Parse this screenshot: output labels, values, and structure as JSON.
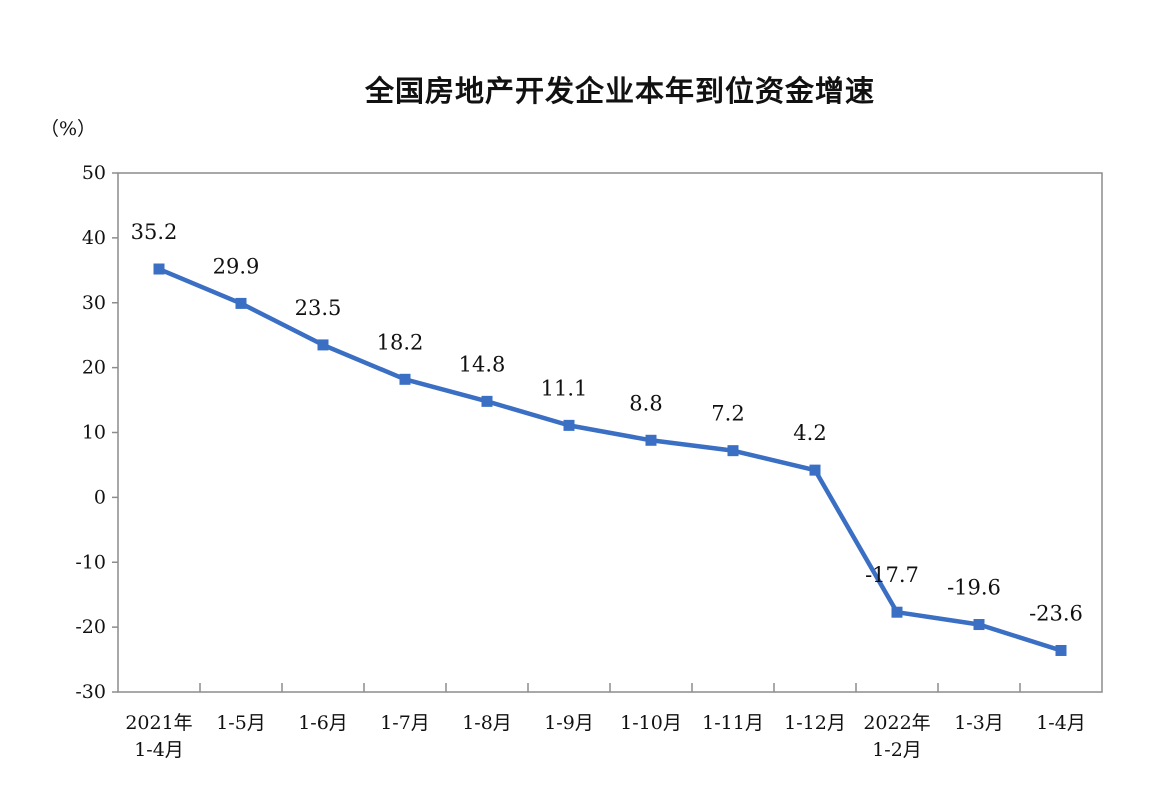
{
  "chart_data": {
    "type": "line",
    "title": "全国房地产开发企业本年到位资金增速",
    "ylabel": "（%）",
    "xlabel": "",
    "ylim": [
      -30,
      50
    ],
    "yticks": [
      50,
      40,
      30,
      20,
      10,
      0,
      -10,
      -20,
      -30
    ],
    "categories": [
      [
        "2021年",
        "1-4月"
      ],
      [
        "1-5月"
      ],
      [
        "1-6月"
      ],
      [
        "1-7月"
      ],
      [
        "1-8月"
      ],
      [
        "1-9月"
      ],
      [
        "1-10月"
      ],
      [
        "1-11月"
      ],
      [
        "1-12月"
      ],
      [
        "2022年",
        "1-2月"
      ],
      [
        "1-3月"
      ],
      [
        "1-4月"
      ]
    ],
    "series": [
      {
        "values": [
          35.2,
          29.9,
          23.5,
          18.2,
          14.8,
          11.1,
          8.8,
          7.2,
          4.2,
          -17.7,
          -19.6,
          -23.6
        ],
        "labels": [
          "35.2",
          "29.9",
          "23.5",
          "18.2",
          "14.8",
          "11.1",
          "8.8",
          "7.2",
          "4.2",
          "-17.7",
          "-19.6",
          "-23.6"
        ]
      }
    ],
    "grid": false,
    "line_color": "#3a6fc4",
    "axis_color": "#8c8c8c"
  }
}
